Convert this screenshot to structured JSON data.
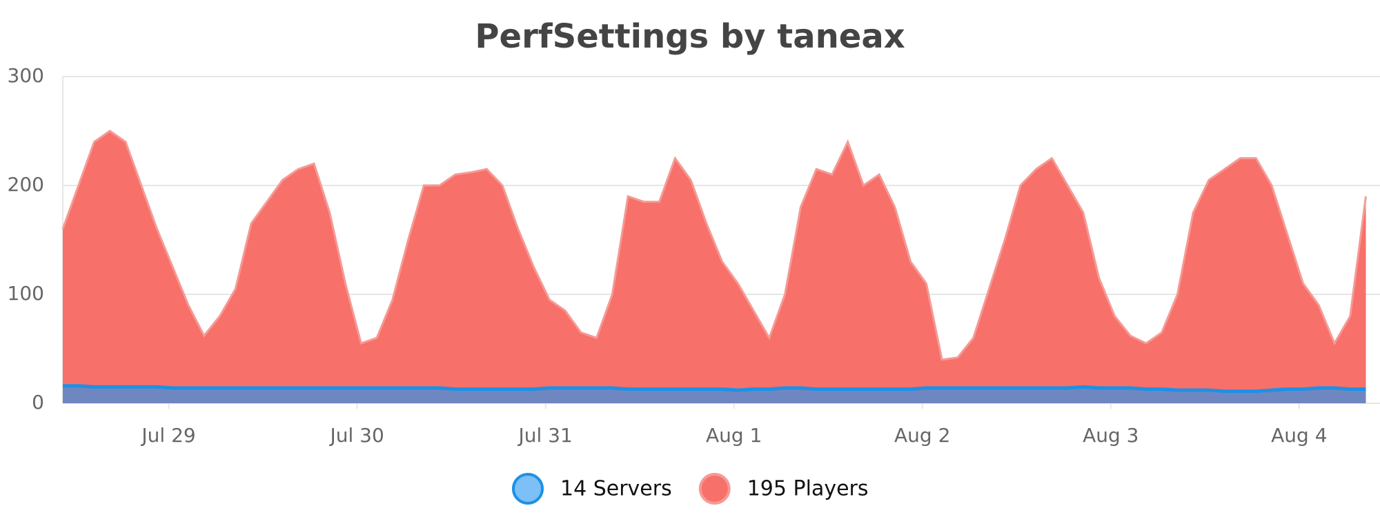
{
  "chart_data": {
    "type": "area",
    "title": "PerfSettings by taneax",
    "x": [
      -13.5,
      -11.5,
      -9.5,
      -7.5,
      -5.5,
      -3.5,
      -1.5,
      0.5,
      2.5,
      4.5,
      6.5,
      8.5,
      10.5,
      12.5,
      14.5,
      16.5,
      18.5,
      20.5,
      22.5,
      24.5,
      26.5,
      28.5,
      30.5,
      32.5,
      34.5,
      36.5,
      38.5,
      40.5,
      42.5,
      44.5,
      46.5,
      48.5,
      50.5,
      52.5,
      54.5,
      56.5,
      58.5,
      60.5,
      62.5,
      64.5,
      66.5,
      68.5,
      70.5,
      72.5,
      74.5,
      76.5,
      78.5,
      80.5,
      82.5,
      84.5,
      86.5,
      88.5,
      90.5,
      92.5,
      94.5,
      96.5,
      98.5,
      100.5,
      102.5,
      104.5,
      106.5,
      108.5,
      110.5,
      112.5,
      114.5,
      116.5,
      118.5,
      120.5,
      122.5,
      124.5,
      126.5,
      128.5,
      130.5,
      132.5,
      134.5,
      136.5,
      138.5,
      140.5,
      142.5,
      144.5,
      146.5,
      148.5,
      150.5,
      152.5
    ],
    "series": [
      {
        "name": "14 Servers",
        "color": "#1e90e6",
        "fill": "#6f87c0",
        "marker_fill": "#7cc0f7",
        "values": [
          16,
          16,
          15,
          15,
          15,
          15,
          15,
          14,
          14,
          14,
          14,
          14,
          14,
          14,
          14,
          14,
          14,
          14,
          14,
          14,
          14,
          14,
          14,
          14,
          14,
          13,
          13,
          13,
          13,
          13,
          13,
          14,
          14,
          14,
          14,
          14,
          13,
          13,
          13,
          13,
          13,
          13,
          13,
          12,
          13,
          13,
          14,
          14,
          13,
          13,
          13,
          13,
          13,
          13,
          13,
          14,
          14,
          14,
          14,
          14,
          14,
          14,
          14,
          14,
          14,
          15,
          14,
          14,
          14,
          13,
          13,
          12,
          12,
          12,
          11,
          11,
          11,
          12,
          13,
          13,
          14,
          14,
          13,
          13
        ]
      },
      {
        "name": "195 Players",
        "color": "#f59a95",
        "fill": "#f7706a",
        "marker_fill": "#f7706a",
        "values": [
          160,
          200,
          240,
          250,
          240,
          200,
          160,
          125,
          90,
          62,
          80,
          105,
          165,
          185,
          205,
          215,
          220,
          175,
          110,
          55,
          60,
          95,
          150,
          200,
          200,
          210,
          212,
          215,
          200,
          160,
          125,
          95,
          85,
          65,
          60,
          100,
          190,
          185,
          185,
          225,
          205,
          165,
          130,
          110,
          85,
          60,
          100,
          180,
          215,
          210,
          240,
          200,
          210,
          180,
          130,
          110,
          40,
          42,
          60,
          105,
          150,
          200,
          215,
          225,
          200,
          175,
          115,
          80,
          62,
          55,
          65,
          100,
          175,
          205,
          215,
          225,
          225,
          200,
          155,
          110,
          90,
          55,
          80,
          190
        ]
      }
    ],
    "xlim": [
      -13.5,
      154.3
    ],
    "xticks": [
      {
        "value": 0,
        "label": "Jul 29"
      },
      {
        "value": 24,
        "label": "Jul 30"
      },
      {
        "value": 48,
        "label": "Jul 31"
      },
      {
        "value": 72,
        "label": "Aug 1"
      },
      {
        "value": 96,
        "label": "Aug 2"
      },
      {
        "value": 120,
        "label": "Aug 3"
      },
      {
        "value": 144,
        "label": "Aug 4"
      }
    ],
    "ylim": [
      0,
      300
    ],
    "yticks": [
      0,
      100,
      200,
      300
    ],
    "grid": true,
    "legend": "bottom"
  }
}
